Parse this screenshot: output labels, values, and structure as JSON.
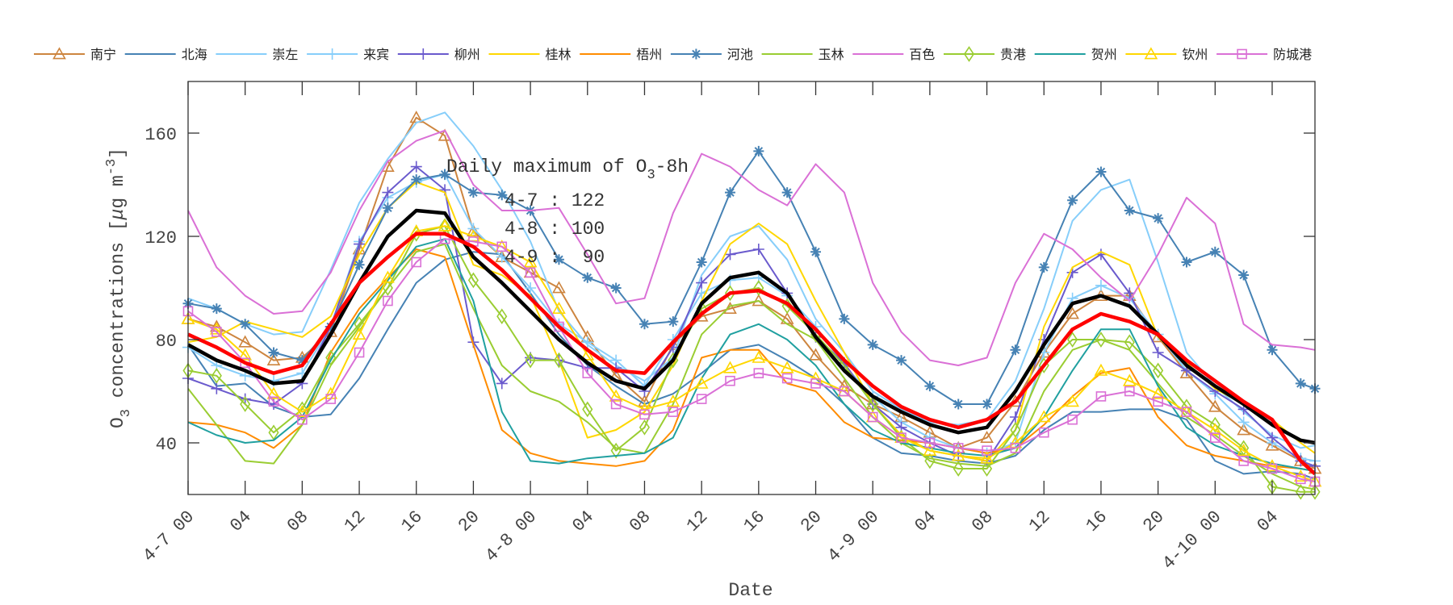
{
  "chart_data": {
    "type": "line",
    "xlabel": "Date",
    "ylabel": {
      "base": "O",
      "sub": "3",
      "mid": " concentrations [",
      "mu": "μ",
      "unit": "g m",
      "sup": "-3",
      "end": "]"
    },
    "xlim": [
      "4-7 00",
      "4-10 07"
    ],
    "ylim": [
      20,
      180
    ],
    "yticks": [
      40,
      80,
      120,
      160
    ],
    "xticks": [
      "4-7 00",
      "4-7 04",
      "4-7 08",
      "4-7 12",
      "4-7 16",
      "4-7 20",
      "4-8 00",
      "4-8 04",
      "4-8 08",
      "4-8 12",
      "4-8 16",
      "4-8 20",
      "4-9 00",
      "4-9 04",
      "4-9 08",
      "4-9 12",
      "4-9 16",
      "4-9 20",
      "4-10 00",
      "4-10 04"
    ],
    "xtick_labels": [
      "4-7 00",
      "04",
      "08",
      "12",
      "16",
      "20",
      "4-8 00",
      "04",
      "08",
      "12",
      "16",
      "20",
      "4-9 00",
      "04",
      "08",
      "12",
      "16",
      "20",
      "4-10 00",
      "04"
    ],
    "grid": false,
    "legend": "top",
    "annotation": {
      "title": {
        "pre": "Daily maximum of O",
        "sub": "3",
        "post": "-8h"
      },
      "lines": [
        "4-7 : 122",
        "4-8 : 100",
        "4-9 :  90"
      ]
    },
    "x": [
      "4-7 00",
      "4-7 02",
      "4-7 04",
      "4-7 06",
      "4-7 08",
      "4-7 10",
      "4-7 12",
      "4-7 14",
      "4-7 16",
      "4-7 18",
      "4-7 20",
      "4-7 22",
      "4-8 00",
      "4-8 02",
      "4-8 04",
      "4-8 06",
      "4-8 08",
      "4-8 10",
      "4-8 12",
      "4-8 14",
      "4-8 16",
      "4-8 18",
      "4-8 20",
      "4-8 22",
      "4-9 00",
      "4-9 02",
      "4-9 04",
      "4-9 06",
      "4-9 08",
      "4-9 10",
      "4-9 12",
      "4-9 14",
      "4-9 16",
      "4-9 18",
      "4-9 20",
      "4-9 22",
      "4-10 00",
      "4-10 02",
      "4-10 04",
      "4-10 06",
      "4-10 07"
    ],
    "series": [
      {
        "name": "南宁",
        "color": "#CD853F",
        "marker": "triangle",
        "values": [
          88,
          85,
          79,
          72,
          73,
          83,
          115,
          147,
          166,
          159,
          122,
          112,
          106,
          100,
          81,
          66,
          56,
          78,
          89,
          92,
          95,
          88,
          74,
          62,
          55,
          50,
          44,
          38,
          42,
          56,
          75,
          90,
          97,
          97,
          81,
          67,
          54,
          45,
          39,
          33,
          30
        ]
      },
      {
        "name": "北海",
        "color": "#4682B4",
        "marker": "none",
        "values": [
          78,
          62,
          63,
          54,
          50,
          51,
          65,
          84,
          102,
          111,
          114,
          113,
          98,
          82,
          70,
          62,
          55,
          59,
          67,
          76,
          78,
          72,
          65,
          55,
          42,
          36,
          35,
          33,
          32,
          35,
          45,
          52,
          52,
          53,
          53,
          49,
          33,
          28,
          29,
          28,
          26
        ]
      },
      {
        "name": "崇左",
        "color": "#87CEFA",
        "marker": "none",
        "values": [
          96,
          92,
          86,
          82,
          83,
          107,
          133,
          150,
          164,
          168,
          155,
          138,
          118,
          91,
          78,
          70,
          64,
          73,
          105,
          120,
          124,
          111,
          88,
          75,
          60,
          53,
          48,
          47,
          49,
          64,
          92,
          126,
          138,
          142,
          110,
          75,
          62,
          52,
          43,
          38,
          39
        ]
      },
      {
        "name": "来宾",
        "color": "#87CEFA",
        "marker": "plus",
        "values": [
          77,
          70,
          66,
          64,
          67,
          85,
          118,
          135,
          141,
          144,
          123,
          112,
          100,
          86,
          79,
          72,
          62,
          80,
          98,
          103,
          104,
          97,
          85,
          70,
          58,
          48,
          42,
          38,
          36,
          40,
          75,
          96,
          101,
          96,
          82,
          68,
          59,
          48,
          40,
          34,
          33
        ]
      },
      {
        "name": "柳州",
        "color": "#6A5ACD",
        "marker": "plus",
        "values": [
          65,
          61,
          57,
          55,
          63,
          85,
          117,
          137,
          147,
          138,
          79,
          63,
          73,
          72,
          69,
          69,
          60,
          77,
          102,
          113,
          115,
          98,
          81,
          71,
          55,
          46,
          40,
          35,
          33,
          50,
          80,
          106,
          113,
          98,
          75,
          68,
          60,
          53,
          42,
          33,
          31
        ]
      },
      {
        "name": "桂林",
        "color": "#FFD700",
        "marker": "none",
        "values": [
          79,
          81,
          87,
          84,
          81,
          89,
          113,
          131,
          141,
          137,
          109,
          105,
          97,
          72,
          42,
          45,
          52,
          70,
          95,
          117,
          125,
          117,
          95,
          75,
          55,
          43,
          37,
          35,
          33,
          45,
          85,
          108,
          114,
          109,
          81,
          71,
          61,
          55,
          49,
          40,
          36
        ]
      },
      {
        "name": "梧州",
        "color": "#FF8C00",
        "marker": "none",
        "values": [
          48,
          47,
          44,
          38,
          47,
          75,
          92,
          104,
          115,
          112,
          78,
          45,
          36,
          33,
          32,
          31,
          33,
          45,
          73,
          76,
          76,
          63,
          60,
          48,
          42,
          41,
          40,
          38,
          36,
          38,
          47,
          58,
          67,
          69,
          50,
          39,
          35,
          33,
          31,
          30,
          29
        ]
      },
      {
        "name": "河池",
        "color": "#4682B4",
        "marker": "asterisk",
        "values": [
          94,
          92,
          86,
          75,
          72,
          85,
          109,
          131,
          142,
          144,
          137,
          136,
          130,
          111,
          104,
          100,
          86,
          87,
          110,
          137,
          153,
          137,
          114,
          88,
          78,
          72,
          62,
          55,
          55,
          76,
          108,
          134,
          145,
          130,
          127,
          110,
          114,
          105,
          76,
          63,
          61
        ]
      },
      {
        "name": "玉林",
        "color": "#9ACD32",
        "marker": "none",
        "values": [
          61,
          47,
          33,
          32,
          47,
          70,
          85,
          100,
          114,
          117,
          92,
          70,
          60,
          56,
          48,
          38,
          36,
          55,
          82,
          93,
          95,
          86,
          80,
          65,
          50,
          40,
          34,
          32,
          31,
          36,
          60,
          76,
          80,
          76,
          63,
          50,
          43,
          35,
          28,
          23,
          22
        ]
      },
      {
        "name": "百色",
        "color": "#DA70D6",
        "marker": "none",
        "values": [
          130,
          108,
          97,
          90,
          91,
          106,
          130,
          149,
          157,
          161,
          140,
          130,
          130,
          131,
          113,
          94,
          96,
          129,
          152,
          147,
          138,
          132,
          148,
          137,
          102,
          83,
          72,
          70,
          73,
          102,
          121,
          115,
          104,
          95,
          113,
          135,
          125,
          86,
          78,
          77,
          76
        ]
      },
      {
        "name": "贵港",
        "color": "#9ACD32",
        "marker": "diamond",
        "values": [
          68,
          66,
          55,
          44,
          53,
          73,
          86,
          100,
          121,
          124,
          103,
          89,
          72,
          72,
          53,
          37,
          46,
          72,
          92,
          98,
          100,
          93,
          82,
          70,
          55,
          42,
          33,
          30,
          30,
          45,
          70,
          80,
          80,
          79,
          68,
          54,
          47,
          38,
          23,
          21,
          21
        ]
      },
      {
        "name": "贺州",
        "color": "#20A0A0",
        "marker": "none",
        "values": [
          48,
          43,
          40,
          41,
          50,
          72,
          90,
          103,
          116,
          119,
          95,
          52,
          33,
          32,
          34,
          35,
          36,
          42,
          65,
          82,
          86,
          80,
          70,
          55,
          45,
          40,
          38,
          36,
          35,
          38,
          50,
          68,
          84,
          84,
          62,
          46,
          39,
          35,
          32,
          30,
          29
        ]
      },
      {
        "name": "钦州",
        "color": "#FFD700",
        "marker": "triangle",
        "values": [
          88,
          84,
          74,
          59,
          52,
          59,
          82,
          104,
          122,
          124,
          120,
          116,
          110,
          92,
          74,
          58,
          53,
          56,
          63,
          69,
          73,
          69,
          65,
          60,
          50,
          42,
          37,
          35,
          34,
          40,
          50,
          56,
          68,
          64,
          59,
          52,
          45,
          37,
          31,
          27,
          25
        ]
      },
      {
        "name": "防城港",
        "color": "#DA70D6",
        "marker": "square",
        "values": [
          91,
          83,
          71,
          56,
          49,
          57,
          75,
          95,
          110,
          119,
          118,
          116,
          106,
          85,
          67,
          55,
          51,
          52,
          57,
          64,
          67,
          65,
          63,
          60,
          50,
          42,
          40,
          38,
          37,
          38,
          44,
          49,
          58,
          60,
          56,
          52,
          42,
          33,
          30,
          26,
          25
        ]
      },
      {
        "color": "#000000",
        "marker": "none",
        "bold": true,
        "values": [
          78,
          72,
          68,
          63,
          64,
          82,
          102,
          120,
          130,
          129,
          112,
          102,
          91,
          80,
          71,
          64,
          61,
          72,
          94,
          104,
          106,
          98,
          81,
          68,
          58,
          52,
          47,
          44,
          46,
          60,
          78,
          94,
          97,
          93,
          82,
          70,
          62,
          55,
          47,
          41,
          40
        ]
      },
      {
        "color": "#FF0000",
        "marker": "none",
        "bold": true,
        "values": [
          82,
          77,
          71,
          67,
          70,
          86,
          102,
          112,
          121,
          121,
          116,
          107,
          96,
          85,
          76,
          68,
          67,
          79,
          90,
          98,
          99,
          94,
          84,
          72,
          62,
          54,
          49,
          46,
          49,
          56,
          70,
          84,
          90,
          87,
          82,
          72,
          64,
          56,
          49,
          33,
          28
        ]
      }
    ]
  }
}
